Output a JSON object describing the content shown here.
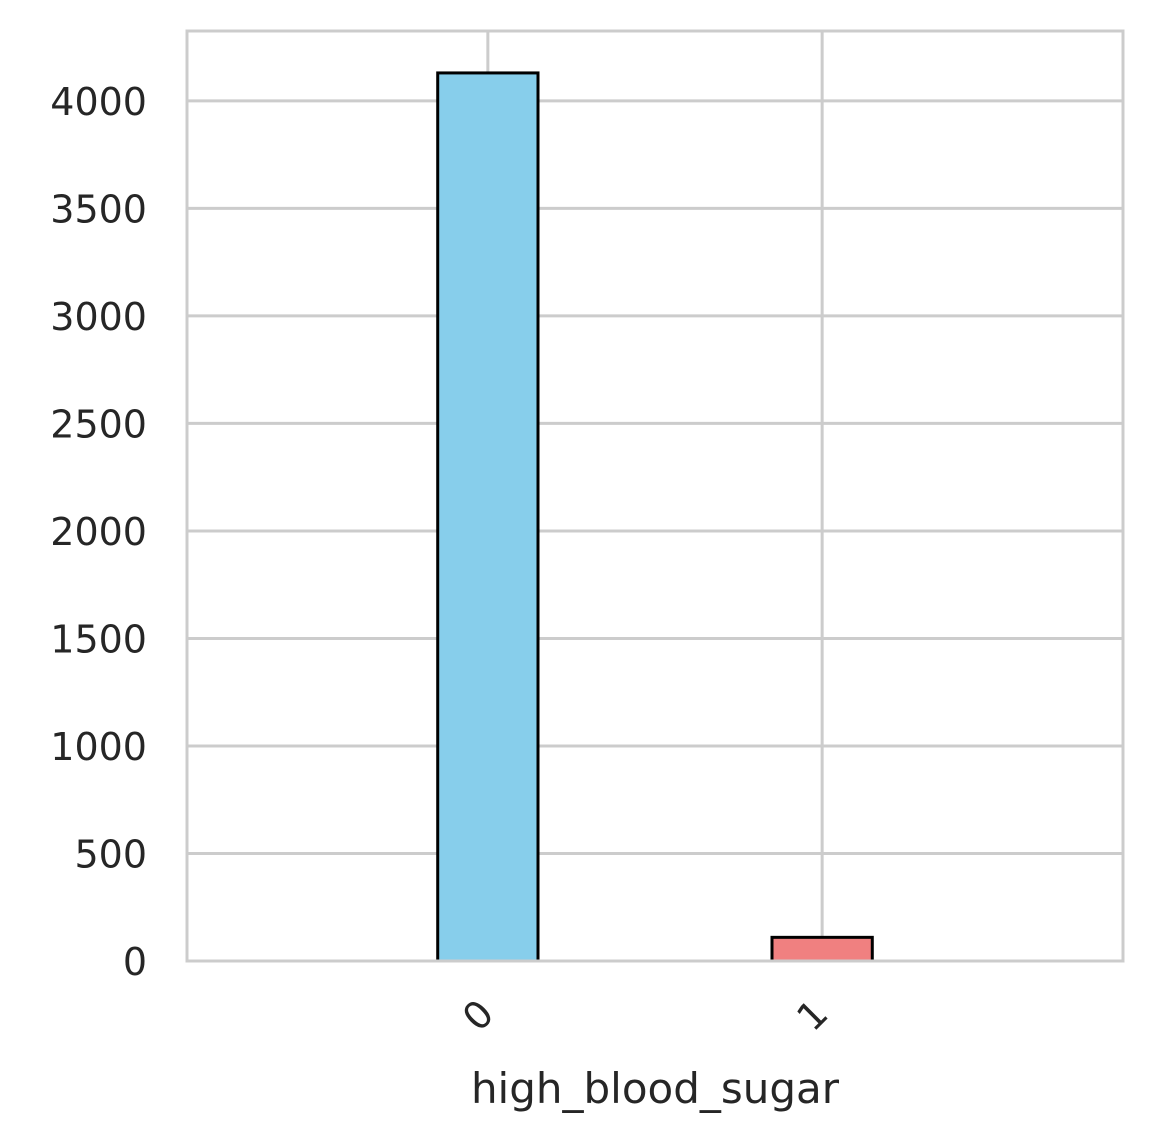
{
  "chart_data": {
    "type": "bar",
    "categories": [
      "0",
      "1"
    ],
    "values": [
      4130,
      110
    ],
    "colors": [
      "#87CEEB",
      "#F08080"
    ],
    "edge_color": "#000000",
    "title": "",
    "xlabel": "high_blood_sugar",
    "ylabel": "",
    "ylim": [
      0,
      4325
    ],
    "yticks": [
      0,
      500,
      1000,
      1500,
      2000,
      2500,
      3000,
      3500,
      4000
    ],
    "ytick_labels": [
      "0",
      "500",
      "1000",
      "1500",
      "2000",
      "2500",
      "3000",
      "3500",
      "4000"
    ],
    "xtick_rotation": -45,
    "grid": true,
    "grid_color": "#cccccc",
    "legend": "none"
  }
}
